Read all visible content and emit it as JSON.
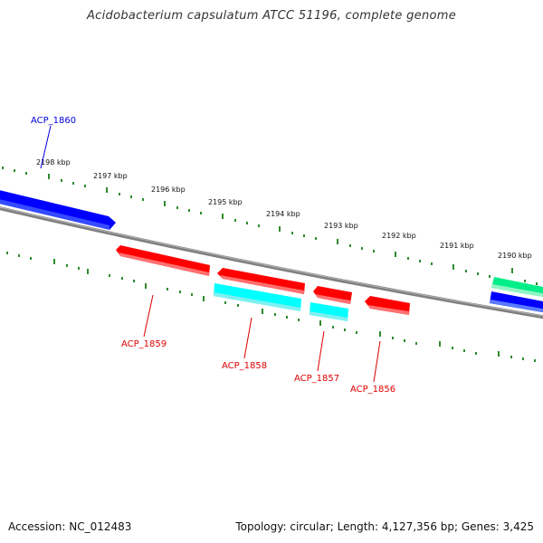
{
  "title": "Acidobacterium capsulatum ATCC 51196, complete genome",
  "footer": {
    "accession": "Accession: NC_012483",
    "summary": "Topology: circular; Length: 4,127,356 bp; Genes: 3,425"
  },
  "colors": {
    "backbone": "#808080",
    "tick": "#2f8a2f",
    "forward_gene": "#0000ff",
    "reverse_gene": "#ff0000",
    "cyan_feature": "#00ffff",
    "green_feature": "#00ee88",
    "forward_label": "#0000dd",
    "reverse_label": "#dd0000"
  },
  "scale_labels": [
    "2198 kbp",
    "2197 kbp",
    "2196 kbp",
    "2195 kbp",
    "2194 kbp",
    "2193 kbp",
    "2192 kbp",
    "2191 kbp",
    "2190 kbp"
  ],
  "gene_labels": [
    {
      "id": "ACP_1860",
      "strand": "forward"
    },
    {
      "id": "ACP_1859",
      "strand": "reverse"
    },
    {
      "id": "ACP_1858",
      "strand": "reverse"
    },
    {
      "id": "ACP_1857",
      "strand": "reverse"
    },
    {
      "id": "ACP_1856",
      "strand": "reverse"
    }
  ]
}
